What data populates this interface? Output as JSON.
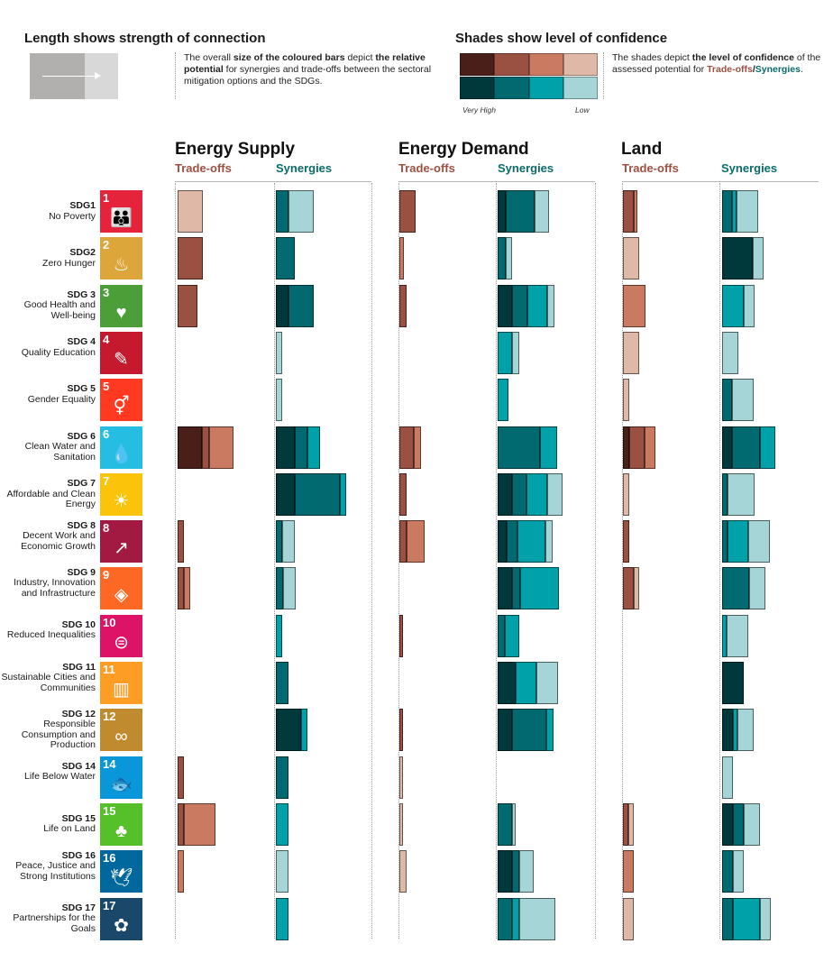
{
  "legend": {
    "length_title": "Length shows strength of connection",
    "length_text_parts": [
      "The overall ",
      "size of the coloured bars",
      " depict ",
      "the relative potential",
      " for synergies and trade-offs between the sectoral mitigation options and the SDGs."
    ],
    "shades_title": "Shades show level of confidence",
    "shades_text_parts": [
      "The shades depict ",
      "the level of confidence",
      " of the assessed potential for ",
      "Trade-offs",
      "/",
      "Synergies",
      "."
    ],
    "very_high": "Very High",
    "low": "Low",
    "tradeoff_shades": [
      "#4a1f1a",
      "#9a5141",
      "#cb7a62",
      "#e0b8a8"
    ],
    "synergy_shades": [
      "#00393b",
      "#006a70",
      "#00a1a8",
      "#a5d5d6"
    ]
  },
  "sectors": [
    {
      "title": "Energy Supply",
      "tradeoffs": "Trade-offs",
      "synergies": "Synergies"
    },
    {
      "title": "Energy Demand",
      "tradeoffs": "Trade-offs",
      "synergies": "Synergies"
    },
    {
      "title": "Land",
      "tradeoffs": "Trade-offs",
      "synergies": "Synergies"
    }
  ],
  "sdgs": [
    {
      "label": "SDG1",
      "name": "No Poverty",
      "num": "1",
      "short": "NO POVERTY",
      "color": "#e5243b",
      "icon": "people-icon",
      "glyph": "👪"
    },
    {
      "label": "SDG2",
      "name": "Zero Hunger",
      "num": "2",
      "short": "ZERO HUNGER",
      "color": "#dda63a",
      "icon": "bowl-icon",
      "glyph": "♨"
    },
    {
      "label": "SDG 3",
      "name": "Good Health and Well-being",
      "num": "3",
      "short": "GOOD HEALTH AND WELL-BEING",
      "color": "#4c9f38",
      "icon": "heartbeat-icon",
      "glyph": "♥"
    },
    {
      "label": "SDG 4",
      "name": "Quality Education",
      "num": "4",
      "short": "QUALITY EDUCATION",
      "color": "#c5192d",
      "icon": "book-icon",
      "glyph": "✎"
    },
    {
      "label": "SDG 5",
      "name": "Gender Equality",
      "num": "5",
      "short": "GENDER EQUALITY",
      "color": "#ff3a21",
      "icon": "gender-icon",
      "glyph": "⚥"
    },
    {
      "label": "SDG 6",
      "name": "Clean Water and Sanitation",
      "num": "6",
      "short": "CLEAN WATER AND SANITATION",
      "color": "#26bde2",
      "icon": "water-drop-icon",
      "glyph": "💧"
    },
    {
      "label": "SDG 7",
      "name": "Affordable and Clean Energy",
      "num": "7",
      "short": "AFFORDABLE AND CLEAN ENERGY",
      "color": "#fcc30b",
      "icon": "sun-icon",
      "glyph": "☀"
    },
    {
      "label": "SDG 8",
      "name": "Decent Work and Economic Growth",
      "num": "8",
      "short": "DECENT WORK AND ECONOMIC GROWTH",
      "color": "#a21942",
      "icon": "growth-chart-icon",
      "glyph": "↗"
    },
    {
      "label": "SDG 9",
      "name": "Industry, Innovation and Infrastructure",
      "num": "9",
      "short": "INDUSTRY, INNOVATION AND INFRASTRUCTURE",
      "color": "#fd6925",
      "icon": "cubes-icon",
      "glyph": "◈"
    },
    {
      "label": "SDG 10",
      "name": "Reduced Inequalities",
      "num": "10",
      "short": "REDUCED INEQUALITIES",
      "color": "#dd1367",
      "icon": "equals-icon",
      "glyph": "⊜"
    },
    {
      "label": "SDG 11",
      "name": "Sustainable Cities and Communities",
      "num": "11",
      "short": "SUSTAINABLE CITIES AND COMMUNITIES",
      "color": "#fd9d24",
      "icon": "city-icon",
      "glyph": "▥"
    },
    {
      "label": "SDG 12",
      "name": "Responsible Consumption and Production",
      "num": "12",
      "short": "RESPONSIBLE CONSUMPTION AND PRODUCTION",
      "color": "#bf8b2e",
      "icon": "infinity-icon",
      "glyph": "∞"
    },
    {
      "label": "SDG 14",
      "name": "Life Below Water",
      "num": "14",
      "short": "LIFE BELOW WATER",
      "color": "#0a97d9",
      "icon": "fish-icon",
      "glyph": "🐟"
    },
    {
      "label": "SDG 15",
      "name": "Life on Land",
      "num": "15",
      "short": "LIFE ON LAND",
      "color": "#56c02b",
      "icon": "tree-icon",
      "glyph": "♣"
    },
    {
      "label": "SDG 16",
      "name": "Peace, Justice and Strong Institutions",
      "num": "16",
      "short": "PEACE, JUSTICE AND STRONG INSTITUTIONS",
      "color": "#00689d",
      "icon": "dove-icon",
      "glyph": "🕊"
    },
    {
      "label": "SDG 17",
      "name": "Partnerships for the Goals",
      "num": "17",
      "short": "PARTNERSHIPS FOR THE GOALS",
      "color": "#19486a",
      "icon": "rings-icon",
      "glyph": "✿"
    }
  ],
  "chart_data": {
    "type": "bar",
    "description_units": "segment lengths per confidence level (very high, high, medium, low), relative potential units",
    "columns": [
      "Energy Supply Trade-offs",
      "Energy Supply Synergies",
      "Energy Demand Trade-offs",
      "Energy Demand Synergies",
      "Land Trade-offs",
      "Land Synergies"
    ],
    "rows": [
      [
        [
          0,
          0,
          0,
          28
        ],
        [
          0,
          14,
          0,
          28
        ],
        [
          0,
          18,
          0,
          0
        ],
        [
          9,
          32,
          0,
          16
        ],
        [
          0,
          12,
          4,
          0
        ],
        [
          0,
          11,
          5,
          24
        ]
      ],
      [
        [
          0,
          28,
          0,
          0
        ],
        [
          0,
          21,
          0,
          0
        ],
        [
          0,
          0,
          5,
          0
        ],
        [
          0,
          9,
          0,
          7
        ],
        [
          0,
          0,
          0,
          18
        ],
        [
          34,
          0,
          0,
          12
        ]
      ],
      [
        [
          0,
          22,
          0,
          0
        ],
        [
          14,
          28,
          0,
          0
        ],
        [
          0,
          8,
          0,
          0
        ],
        [
          16,
          17,
          22,
          8
        ],
        [
          0,
          0,
          25,
          0
        ],
        [
          0,
          0,
          24,
          12
        ]
      ],
      [
        [
          0,
          0,
          0,
          0
        ],
        [
          0,
          0,
          0,
          7
        ],
        [
          0,
          0,
          0,
          0
        ],
        [
          0,
          0,
          16,
          8
        ],
        [
          0,
          0,
          0,
          18
        ],
        [
          0,
          0,
          0,
          18
        ]
      ],
      [
        [
          0,
          0,
          0,
          0
        ],
        [
          0,
          0,
          0,
          7
        ],
        [
          0,
          0,
          0,
          0
        ],
        [
          0,
          0,
          12,
          0
        ],
        [
          0,
          0,
          0,
          7
        ],
        [
          0,
          11,
          0,
          24
        ]
      ],
      [
        [
          27,
          8,
          27,
          0
        ],
        [
          21,
          14,
          14,
          0
        ],
        [
          0,
          16,
          8,
          0
        ],
        [
          0,
          47,
          19,
          0
        ],
        [
          7,
          17,
          12,
          0
        ],
        [
          11,
          31,
          17,
          0
        ]
      ],
      [
        [
          0,
          0,
          0,
          0
        ],
        [
          21,
          50,
          7,
          0
        ],
        [
          0,
          8,
          0,
          0
        ],
        [
          16,
          16,
          23,
          17
        ],
        [
          0,
          0,
          0,
          7
        ],
        [
          0,
          6,
          0,
          30
        ]
      ],
      [
        [
          0,
          7,
          0,
          0
        ],
        [
          0,
          7,
          0,
          14
        ],
        [
          0,
          8,
          20,
          0
        ],
        [
          10,
          12,
          31,
          8
        ],
        [
          0,
          7,
          0,
          0
        ],
        [
          0,
          6,
          23,
          24
        ]
      ],
      [
        [
          0,
          7,
          7,
          0
        ],
        [
          0,
          8,
          0,
          14
        ],
        [
          0,
          0,
          0,
          0
        ],
        [
          16,
          9,
          43,
          0
        ],
        [
          0,
          12,
          0,
          6
        ],
        [
          0,
          30,
          0,
          18
        ]
      ],
      [
        [
          0,
          0,
          0,
          0
        ],
        [
          0,
          0,
          7,
          0
        ],
        [
          0,
          4,
          0,
          0
        ],
        [
          0,
          8,
          16,
          0
        ],
        [
          0,
          0,
          0,
          0
        ],
        [
          0,
          0,
          5,
          24
        ]
      ],
      [
        [
          0,
          0,
          0,
          0
        ],
        [
          0,
          14,
          0,
          0
        ],
        [
          0,
          0,
          0,
          0
        ],
        [
          20,
          0,
          23,
          24
        ],
        [
          0,
          0,
          0,
          0
        ],
        [
          24,
          0,
          0,
          0
        ]
      ],
      [
        [
          0,
          0,
          0,
          0
        ],
        [
          28,
          0,
          7,
          0
        ],
        [
          0,
          4,
          0,
          0
        ],
        [
          16,
          38,
          8,
          0
        ],
        [
          0,
          0,
          0,
          0
        ],
        [
          12,
          0,
          5,
          18
        ]
      ],
      [
        [
          0,
          7,
          0,
          0
        ],
        [
          0,
          14,
          0,
          0
        ],
        [
          0,
          0,
          0,
          4
        ],
        [
          0,
          0,
          0,
          0
        ],
        [
          0,
          0,
          0,
          0
        ],
        [
          0,
          0,
          0,
          12
        ]
      ],
      [
        [
          0,
          7,
          35,
          0
        ],
        [
          0,
          0,
          14,
          0
        ],
        [
          0,
          0,
          0,
          4
        ],
        [
          0,
          16,
          0,
          4
        ],
        [
          0,
          6,
          0,
          6
        ],
        [
          12,
          12,
          0,
          18
        ]
      ],
      [
        [
          0,
          0,
          7,
          0
        ],
        [
          0,
          0,
          0,
          14
        ],
        [
          0,
          0,
          0,
          8
        ],
        [
          16,
          8,
          0,
          16
        ],
        [
          0,
          0,
          12,
          0
        ],
        [
          0,
          12,
          0,
          12
        ]
      ],
      [
        [
          0,
          0,
          0,
          0
        ],
        [
          0,
          0,
          14,
          0
        ],
        [
          0,
          0,
          0,
          0
        ],
        [
          0,
          16,
          8,
          40
        ],
        [
          0,
          0,
          0,
          12
        ],
        [
          0,
          12,
          30,
          12
        ]
      ]
    ]
  }
}
